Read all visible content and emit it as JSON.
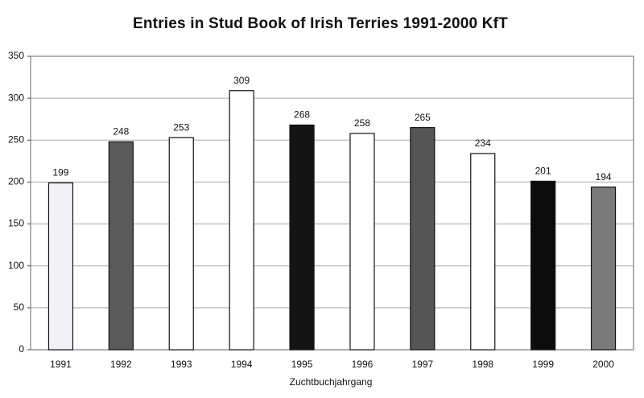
{
  "chart_data": {
    "type": "bar",
    "title": "Entries in Stud Book of Irish Terries 1991-2000 KfT",
    "x_label": "Zuchtbuchjahrgang",
    "categories": [
      "1991",
      "1992",
      "1993",
      "1994",
      "1995",
      "1996",
      "1997",
      "1998",
      "1999",
      "2000"
    ],
    "values": [
      199,
      248,
      253,
      309,
      268,
      258,
      265,
      234,
      201,
      194
    ],
    "colors": [
      "#f1f1f6",
      "#5a5a5a",
      "#ffffff",
      "#ffffff",
      "#141414",
      "#ffffff",
      "#555555",
      "#ffffff",
      "#0c0c0c",
      "#7a7a7a"
    ],
    "ylim": [
      0,
      350
    ],
    "yticks": [
      0,
      50,
      100,
      150,
      200,
      250,
      300,
      350
    ],
    "grid": true
  }
}
